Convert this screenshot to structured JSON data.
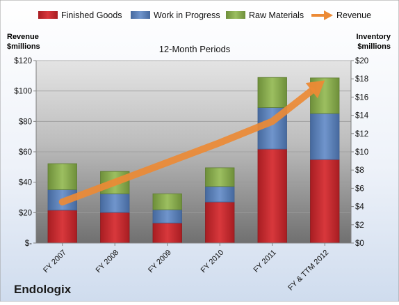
{
  "company": "Endologix",
  "colors": {
    "finished_goods": "#c8262b",
    "work_in_progress": "#5b84c0",
    "raw_materials": "#88ab4f",
    "revenue_arrow": "#ec8a35"
  },
  "chart_data": {
    "type": "bar",
    "stacked": true,
    "title": "12-Month Periods",
    "left_axis_label": [
      "Revenue",
      "$millions"
    ],
    "right_axis_label": [
      "Inventory",
      "$millions"
    ],
    "categories": [
      "FY 2007",
      "FY 2008",
      "FY 2009",
      "FY 2010",
      "FY 2011",
      "FY & TTM 2012"
    ],
    "left_ylim": [
      0,
      120
    ],
    "right_ylim": [
      0,
      20
    ],
    "left_ticks": [
      {
        "value": 0,
        "label": "$-"
      },
      {
        "value": 20,
        "label": "$20"
      },
      {
        "value": 40,
        "label": "$40"
      },
      {
        "value": 60,
        "label": "$60"
      },
      {
        "value": 80,
        "label": "$80"
      },
      {
        "value": 100,
        "label": "$100"
      },
      {
        "value": 120,
        "label": "$120"
      }
    ],
    "right_ticks": [
      {
        "value": 0,
        "label": "$0"
      },
      {
        "value": 2,
        "label": "$2"
      },
      {
        "value": 4,
        "label": "$4"
      },
      {
        "value": 6,
        "label": "$6"
      },
      {
        "value": 8,
        "label": "$8"
      },
      {
        "value": 10,
        "label": "$10"
      },
      {
        "value": 12,
        "label": "$12"
      },
      {
        "value": 14,
        "label": "$14"
      },
      {
        "value": 16,
        "label": "$16"
      },
      {
        "value": 18,
        "label": "$18"
      },
      {
        "value": 20,
        "label": "$20"
      }
    ],
    "series": [
      {
        "name": "Finished Goods",
        "axis": "right",
        "values": [
          3.6,
          3.35,
          2.2,
          4.5,
          10.3,
          9.15
        ]
      },
      {
        "name": "Work in Progress",
        "axis": "right",
        "values": [
          2.25,
          2.05,
          1.45,
          1.7,
          4.55,
          5.05
        ]
      },
      {
        "name": "Raw Materials",
        "axis": "right",
        "values": [
          2.85,
          2.45,
          1.75,
          2.05,
          3.3,
          3.9
        ]
      }
    ],
    "line_series": {
      "name": "Revenue",
      "axis": "left",
      "values": [
        27,
        40,
        53,
        66,
        80,
        107
      ]
    },
    "legend": "top",
    "grid": true
  }
}
